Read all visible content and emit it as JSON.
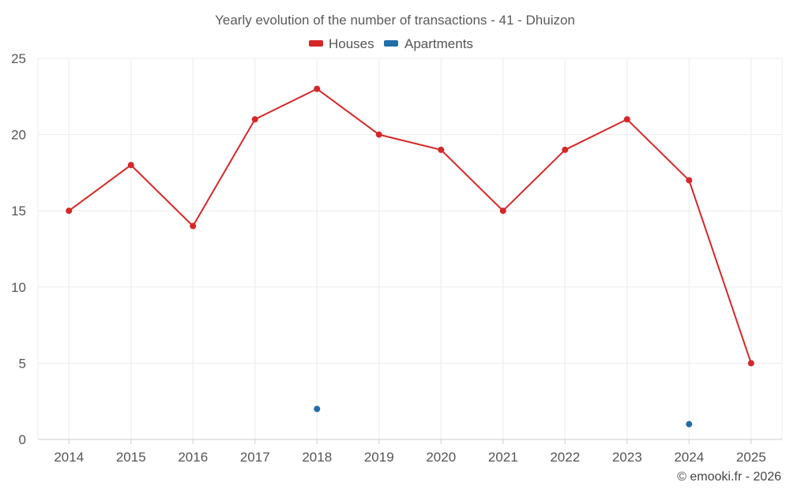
{
  "chart_data": {
    "type": "line",
    "title": "Yearly evolution of the number of transactions - 41 - Dhuizon",
    "categories": [
      "2014",
      "2015",
      "2016",
      "2017",
      "2018",
      "2019",
      "2020",
      "2021",
      "2022",
      "2023",
      "2024",
      "2025"
    ],
    "series": [
      {
        "name": "Houses",
        "color": "#d62728",
        "values": [
          15,
          18,
          14,
          21,
          23,
          20,
          19,
          15,
          19,
          21,
          17,
          5
        ]
      },
      {
        "name": "Apartments",
        "color": "#1f6fa8",
        "values": [
          null,
          null,
          null,
          null,
          2,
          null,
          null,
          null,
          null,
          null,
          1,
          null
        ]
      }
    ],
    "ylim": [
      0,
      25
    ],
    "yticks": [
      0,
      5,
      10,
      15,
      20,
      25
    ],
    "xlabel": "",
    "ylabel": "",
    "grid": true,
    "legend": "top-center"
  },
  "credit": "© emooki.fr - 2026"
}
